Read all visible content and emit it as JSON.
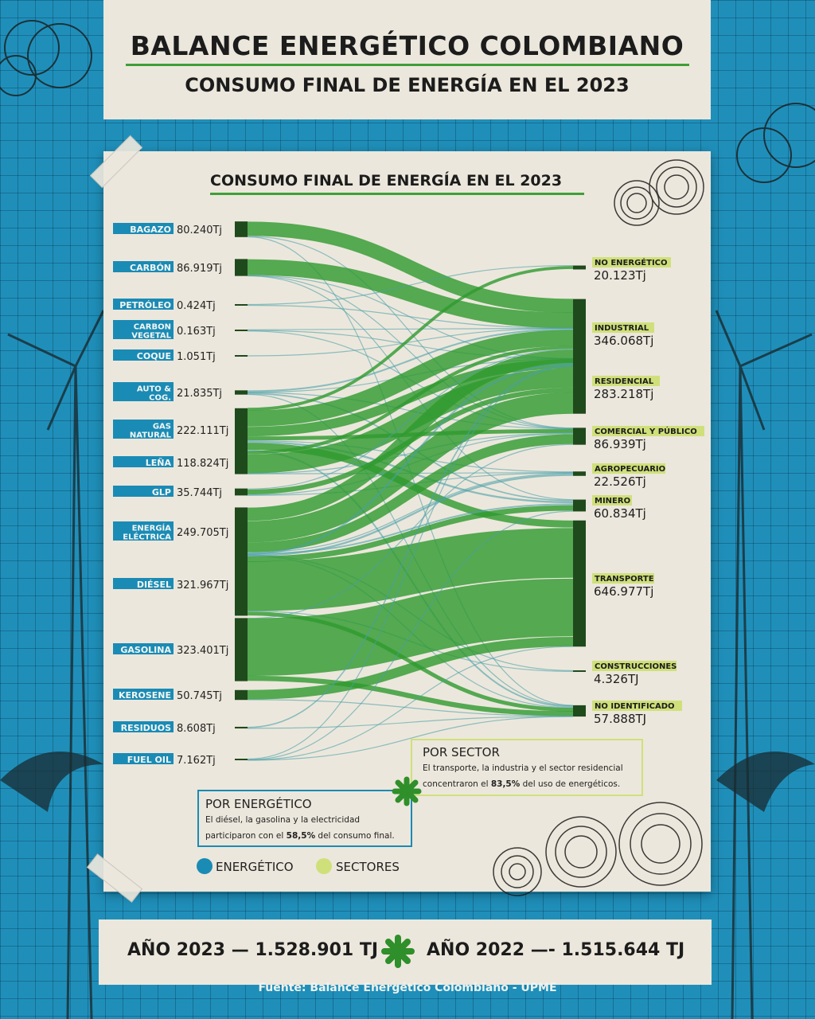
{
  "header": {
    "title": "BALANCE ENERGÉTICO COLOMBIANO",
    "subtitle": "CONSUMO FINAL DE ENERGÍA EN EL 2023"
  },
  "chart_data": {
    "type": "sankey",
    "title": "CONSUMO FINAL DE ENERGÍA EN EL 2023",
    "sources": [
      {
        "name": "BAGAZO",
        "value": 80240,
        "label": "80.240Tj"
      },
      {
        "name": "CARBÓN",
        "value": 86919,
        "label": "86.919Tj"
      },
      {
        "name": "PETRÓLEO",
        "value": 424,
        "label": "0.424Tj"
      },
      {
        "name": "CARBON VEGETAL",
        "value": 163,
        "label": "0.163Tj"
      },
      {
        "name": "COQUE",
        "value": 1051,
        "label": "1.051Tj"
      },
      {
        "name": "AUTO & COG.",
        "value": 21835,
        "label": "21.835Tj"
      },
      {
        "name": "GAS NATURAL",
        "value": 222111,
        "label": "222.111Tj"
      },
      {
        "name": "LEÑA",
        "value": 118824,
        "label": "118.824Tj"
      },
      {
        "name": "GLP",
        "value": 35744,
        "label": "35.744Tj"
      },
      {
        "name": "ENERGÍA ELÉCTRICA",
        "value": 249705,
        "label": "249.705Tj"
      },
      {
        "name": "DIÉSEL",
        "value": 321967,
        "label": "321.967Tj"
      },
      {
        "name": "GASOLINA",
        "value": 323401,
        "label": "323.401Tj"
      },
      {
        "name": "KEROSENE",
        "value": 50745,
        "label": "50.745Tj"
      },
      {
        "name": "RESIDUOS",
        "value": 8608,
        "label": "8.608Tj"
      },
      {
        "name": "FUEL OIL",
        "value": 7162,
        "label": "7.162Tj"
      }
    ],
    "targets": [
      {
        "name": "NO ENERGÉTICO",
        "value": 20123,
        "label": "20.123Tj"
      },
      {
        "name": "INDUSTRIAL",
        "value": 346068,
        "label": "346.068Tj"
      },
      {
        "name": "RESIDENCIAL",
        "value": 283218,
        "label": "283.218Tj"
      },
      {
        "name": "COMERCIAL Y PÚBLICO",
        "value": 86939,
        "label": "86.939Tj"
      },
      {
        "name": "AGROPECUARIO",
        "value": 22526,
        "label": "22.526Tj"
      },
      {
        "name": "MINERO",
        "value": 60834,
        "label": "60.834Tj"
      },
      {
        "name": "TRANSPORTE",
        "value": 646977,
        "label": "646.977Tj"
      },
      {
        "name": "CONSTRUCCIONES",
        "value": 4326,
        "label": "4.326TJ"
      },
      {
        "name": "NO IDENTIFICADO",
        "value": 57888,
        "label": "57.888TJ"
      }
    ],
    "legend": [
      "ENERGÉTICO",
      "SECTORES"
    ]
  },
  "notes": {
    "energetico": {
      "title": "POR ENERGÉTICO",
      "line1": "El diésel, la gasolina y la electricidad",
      "line2_pre": "participaron con el ",
      "line2_bold": "58,5%",
      "line2_post": " del consumo final."
    },
    "sector": {
      "title": "POR SECTOR",
      "line1": "El transporte, la industria y el sector residencial",
      "line2_pre": "concentraron el ",
      "line2_bold": "83,5%",
      "line2_post": " del uso de energéticos."
    }
  },
  "footer": {
    "year2023": "AÑO 2023 — 1.528.901 TJ",
    "year2022": "AÑO 2022 —- 1.515.644 TJ",
    "source": "Fuente: Balance Energético Colombiano - UPME"
  },
  "colors": {
    "flow": "#2e9a2e",
    "node": "#1f4a1c",
    "source_tag": "#1a8bb5",
    "target_tag": "#cfe07a",
    "paper": "#ece7dc"
  }
}
